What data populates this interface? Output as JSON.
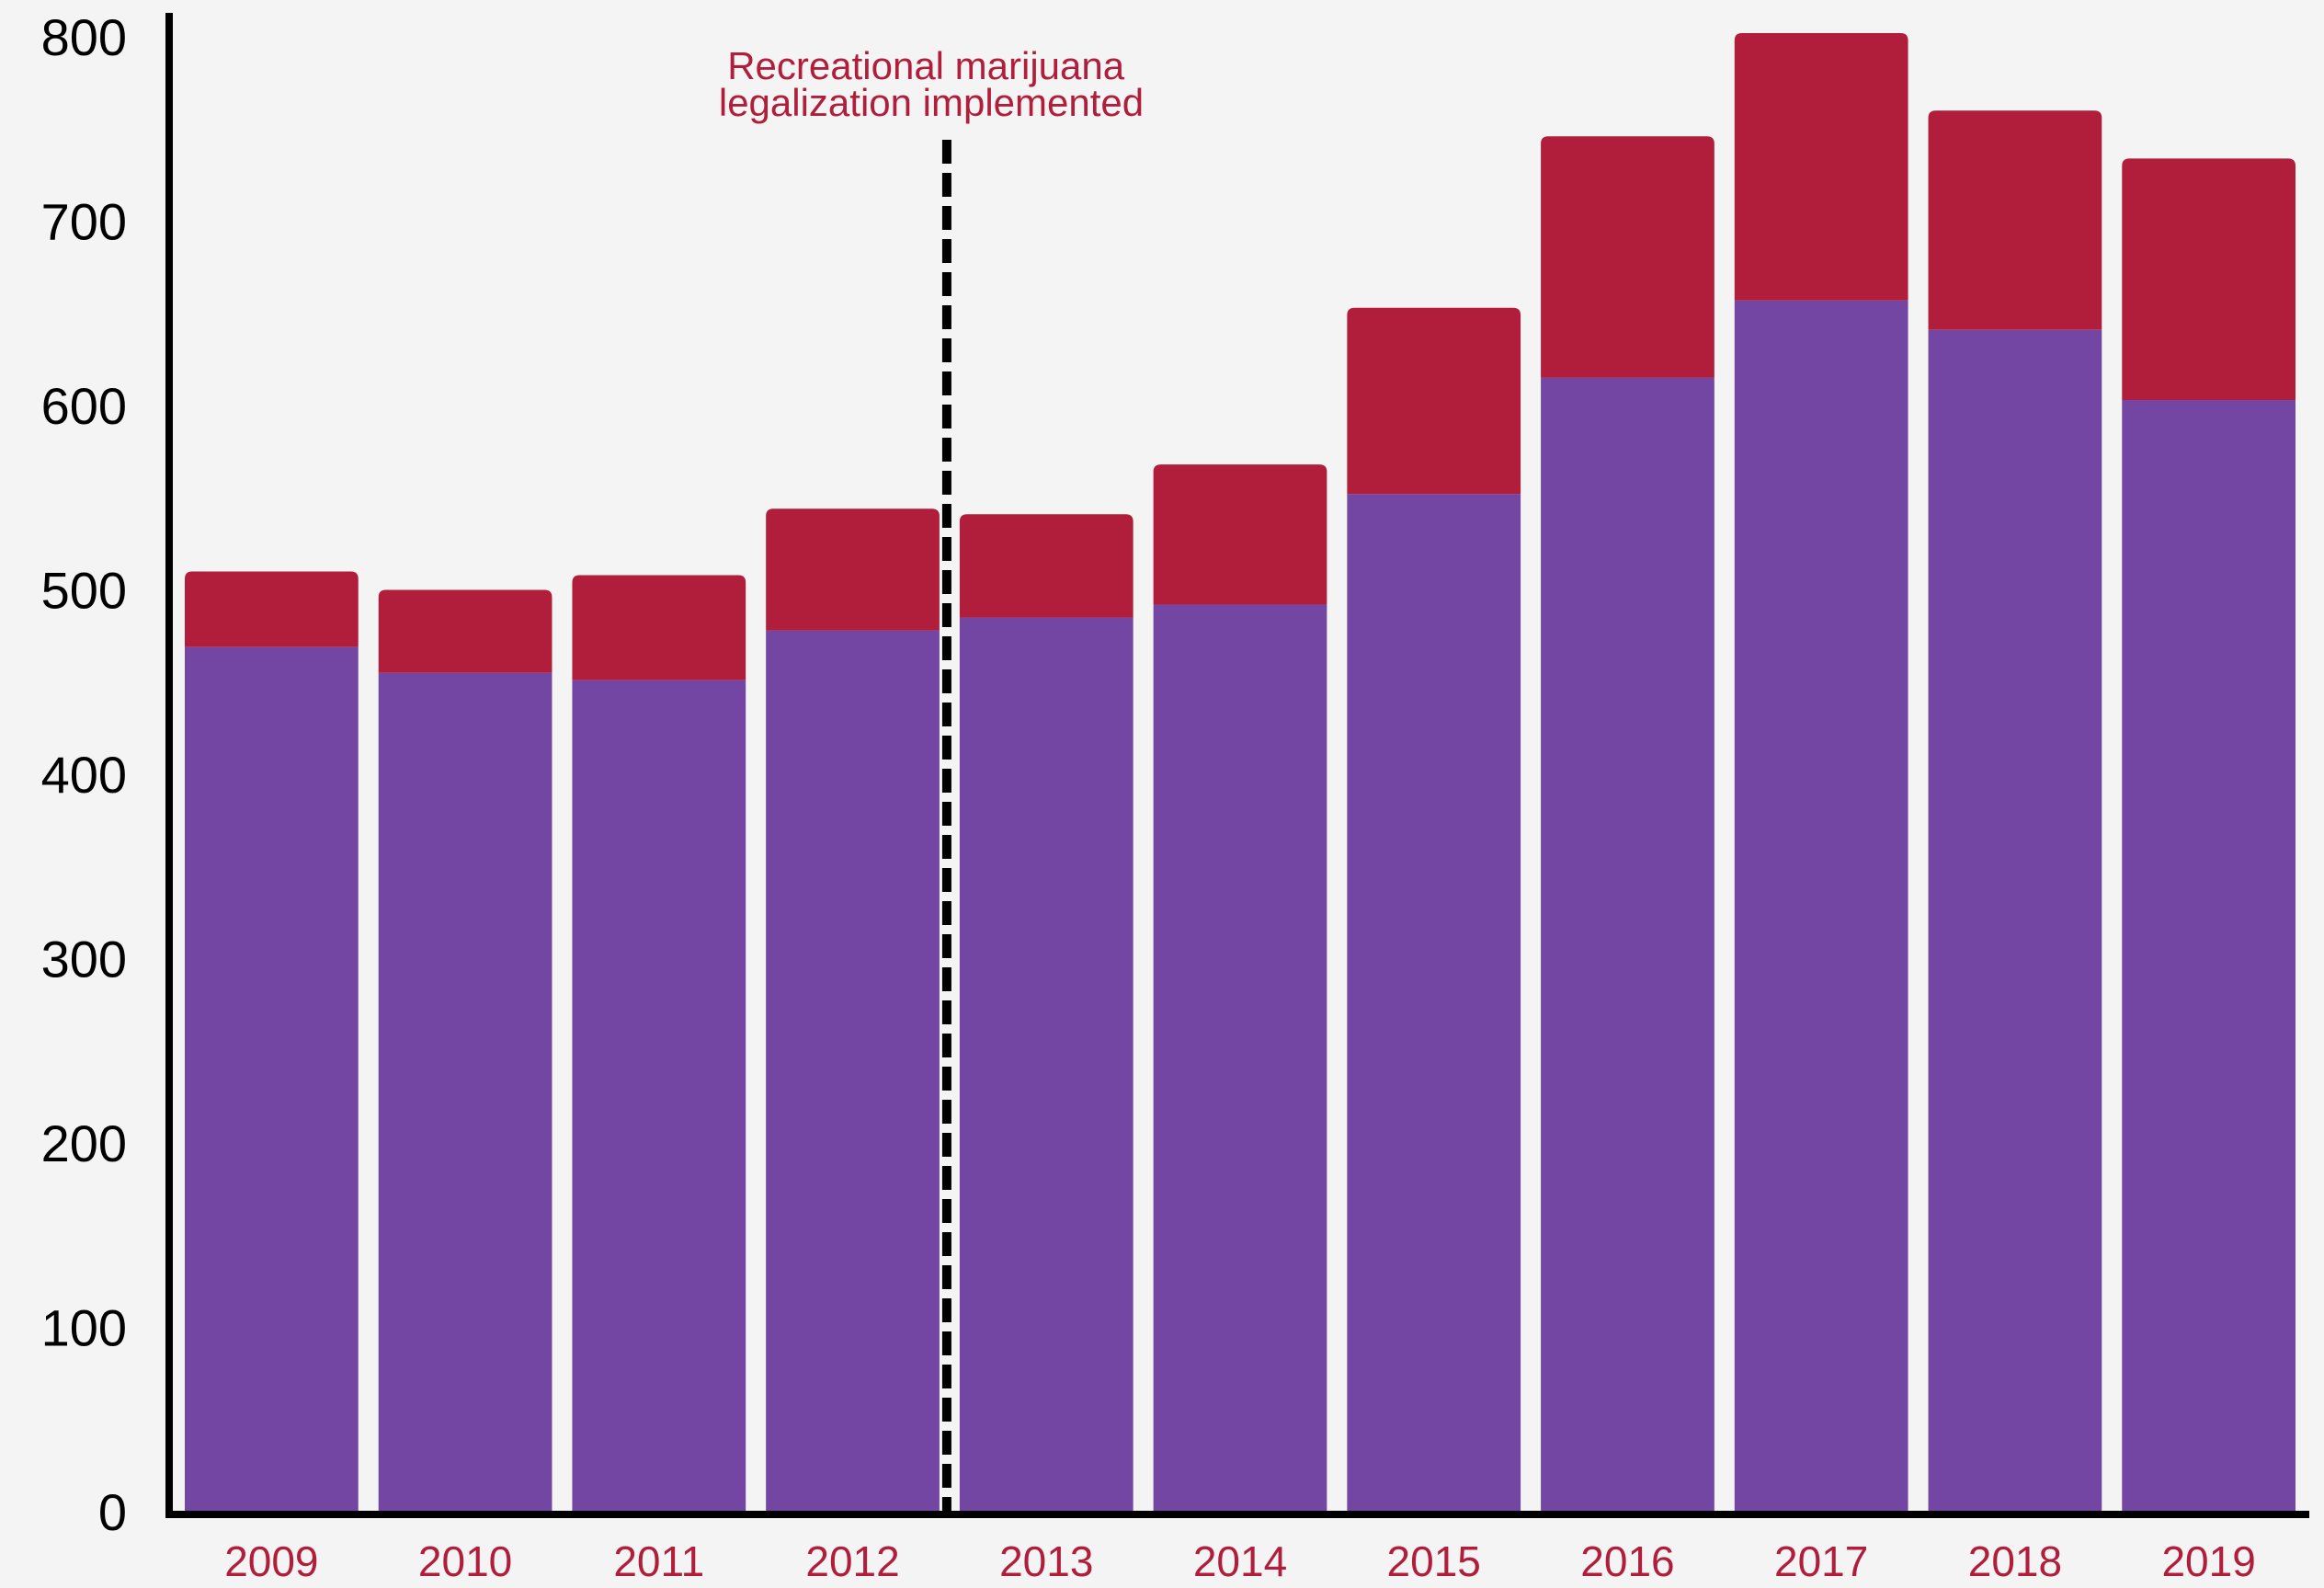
{
  "chart_data": {
    "type": "bar",
    "stacked": true,
    "categories": [
      "2009",
      "2010",
      "2011",
      "2012",
      "2013",
      "2014",
      "2015",
      "2016",
      "2017",
      "2018",
      "2019"
    ],
    "series": [
      {
        "values": [
          469,
          455,
          451,
          478,
          485,
          492,
          552,
          615,
          657,
          641,
          603
        ],
        "color": "#7446a3"
      },
      {
        "values": [
          41,
          45,
          57,
          66,
          56,
          76,
          101,
          131,
          145,
          119,
          131
        ],
        "color": "#b01e3b"
      }
    ],
    "y_ticks": [
      "0",
      "100",
      "200",
      "300",
      "400",
      "500",
      "600",
      "700",
      "800"
    ],
    "ylim": [
      0,
      820
    ],
    "annotation": {
      "lines": [
        "Recreational marijuana",
        "legalization implemented"
      ],
      "position_between": [
        "2012",
        "2013"
      ],
      "color": "#b01e3b",
      "line_style": "dashed"
    },
    "grid": false,
    "legend": "none",
    "colors": {
      "background": "#f4f4f4",
      "axis": "#000000",
      "x_tick_labels": "#b01e3b"
    }
  }
}
